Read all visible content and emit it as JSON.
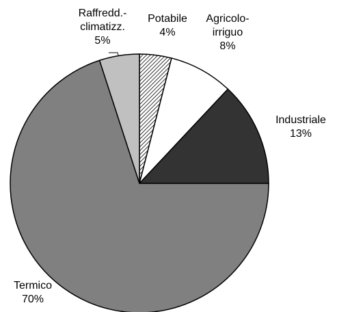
{
  "chart_data": {
    "type": "pie",
    "categories": [
      "Potabile",
      "Agricolo-\nirriguo",
      "Industriale",
      "Termico",
      "Raffredd.-\nclimatizz."
    ],
    "values": [
      4,
      8,
      13,
      70,
      5
    ],
    "value_labels": [
      "4%",
      "8%",
      "13%",
      "70%",
      "5%"
    ],
    "colors": [
      "#ffffff",
      "#ffffff",
      "#333333",
      "#808080",
      "#c0c0c0"
    ],
    "hatched": [
      true,
      false,
      false,
      false,
      false
    ]
  }
}
